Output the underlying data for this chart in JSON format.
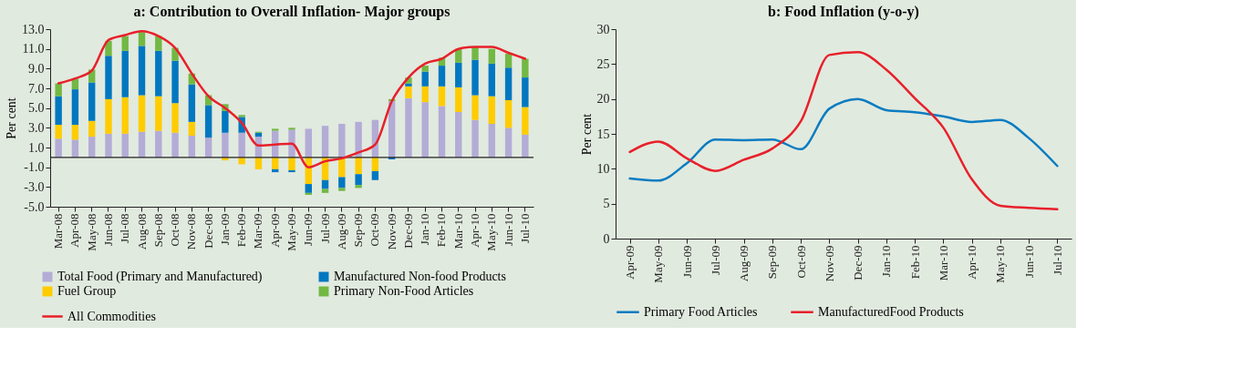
{
  "chart_data": [
    {
      "type": "bar",
      "title": "a: Contribution to Overall Inflation- Major groups",
      "ylabel": "Per cent",
      "stacked": true,
      "legend": "bottom",
      "grid": false,
      "categories": [
        "Mar-08",
        "Apr-08",
        "May-08",
        "Jun-08",
        "Jul-08",
        "Aug-08",
        "Sep-08",
        "Oct-08",
        "Nov-08",
        "Dec-08",
        "Jan-09",
        "Feb-09",
        "Mar-09",
        "Apr-09",
        "May-09",
        "Jun-09",
        "Jul-09",
        "Aug-09",
        "Sep-09",
        "Oct-09",
        "Nov-09",
        "Dec-09",
        "Jan-10",
        "Feb-10",
        "Mar-10",
        "Apr-10",
        "May-10",
        "Jun-10",
        "Jul-10"
      ],
      "ylim": [
        -5,
        13
      ],
      "yticks": [
        {
          "value": -5,
          "label": "-5.0"
        },
        {
          "value": -3,
          "label": "-3.0"
        },
        {
          "value": -1,
          "label": "-1.0"
        },
        {
          "value": 1,
          "label": "1.0"
        },
        {
          "value": 3,
          "label": "3.0"
        },
        {
          "value": 5,
          "label": "5.0"
        },
        {
          "value": 7,
          "label": "7.0"
        },
        {
          "value": 9,
          "label": "9.0"
        },
        {
          "value": 11,
          "label": "11.0"
        },
        {
          "value": 13,
          "label": "13.0"
        }
      ],
      "series": [
        {
          "name": "Total Food (Primary and Manufactured)",
          "color": "#b3acd6",
          "values": [
            1.9,
            1.8,
            2.1,
            2.4,
            2.4,
            2.6,
            2.7,
            2.5,
            2.2,
            2.0,
            2.5,
            2.5,
            2.1,
            2.7,
            2.8,
            2.9,
            3.2,
            3.4,
            3.6,
            3.8,
            5.7,
            6.0,
            5.6,
            5.2,
            4.6,
            3.8,
            3.4,
            3.0,
            2.3
          ]
        },
        {
          "name": "Fuel Group",
          "color": "#ffcc00",
          "values": [
            1.4,
            1.5,
            1.6,
            3.5,
            3.7,
            3.7,
            3.5,
            3.0,
            1.4,
            null,
            -0.3,
            -0.7,
            -1.2,
            -1.2,
            -1.3,
            -2.7,
            -2.3,
            -2.0,
            -1.7,
            -1.4,
            null,
            1.2,
            1.6,
            2.0,
            2.5,
            2.5,
            2.8,
            2.8,
            2.8
          ]
        },
        {
          "name": "Manufactured Non-food Products",
          "color": "#0077c0",
          "values": [
            2.9,
            3.6,
            3.9,
            4.4,
            4.7,
            5.0,
            4.6,
            4.3,
            3.8,
            3.3,
            2.2,
            1.6,
            0.4,
            -0.3,
            -0.2,
            -0.9,
            -0.9,
            -1.1,
            -1.1,
            -0.9,
            -0.2,
            0.3,
            1.5,
            2.1,
            2.5,
            3.6,
            3.3,
            3.3,
            3.0
          ]
        },
        {
          "name": "Primary Non-Food Articles",
          "color": "#72b843",
          "values": [
            1.3,
            1.1,
            1.3,
            1.5,
            1.5,
            1.4,
            1.5,
            1.3,
            1.1,
            1.0,
            0.7,
            0.2,
            0.1,
            0.2,
            0.2,
            -0.2,
            -0.4,
            -0.3,
            -0.3,
            null,
            0.2,
            0.6,
            0.6,
            0.8,
            1.4,
            1.3,
            1.5,
            1.4,
            1.9
          ]
        },
        {
          "name": "All Commodities",
          "type": "line",
          "color": "#e8202a",
          "values": [
            7.5,
            8.0,
            8.8,
            11.9,
            12.4,
            12.8,
            12.3,
            11.1,
            8.5,
            6.2,
            5.0,
            3.5,
            1.2,
            1.3,
            1.4,
            -1.0,
            -0.4,
            -0.1,
            0.5,
            1.3,
            5.7,
            8.1,
            9.5,
            10.0,
            11.0,
            11.2,
            11.2,
            10.6,
            10.0
          ]
        }
      ]
    },
    {
      "type": "line",
      "title": "b: Food Inflation (y-o-y)",
      "ylabel": "Per cent",
      "legend": "bottom",
      "grid": false,
      "categories": [
        "Apr-09",
        "May-09",
        "Jun-09",
        "Jul-09",
        "Aug-09",
        "Sep-09",
        "Oct-09",
        "Nov-09",
        "Dec-09",
        "Jan-10",
        "Feb-10",
        "Mar-10",
        "Apr-10",
        "May-10",
        "Jun-10",
        "Jul-10"
      ],
      "ylim": [
        0,
        30
      ],
      "yticks": [
        0,
        5,
        10,
        15,
        20,
        25,
        30
      ],
      "series": [
        {
          "name": "Primary Food Articles",
          "color": "#0a7cc1",
          "values": [
            8.6,
            8.3,
            10.8,
            14.2,
            14.1,
            14.2,
            12.8,
            18.6,
            20.0,
            18.4,
            18.1,
            17.5,
            16.7,
            17.0,
            14.4,
            10.4
          ]
        },
        {
          "name": "ManufacturedFood Products",
          "color": "#e8202a",
          "values": [
            12.4,
            13.9,
            11.5,
            9.7,
            11.3,
            12.9,
            16.8,
            26.3,
            26.7,
            24.2,
            20.1,
            15.9,
            8.5,
            4.7,
            4.4,
            4.2
          ]
        }
      ]
    }
  ]
}
